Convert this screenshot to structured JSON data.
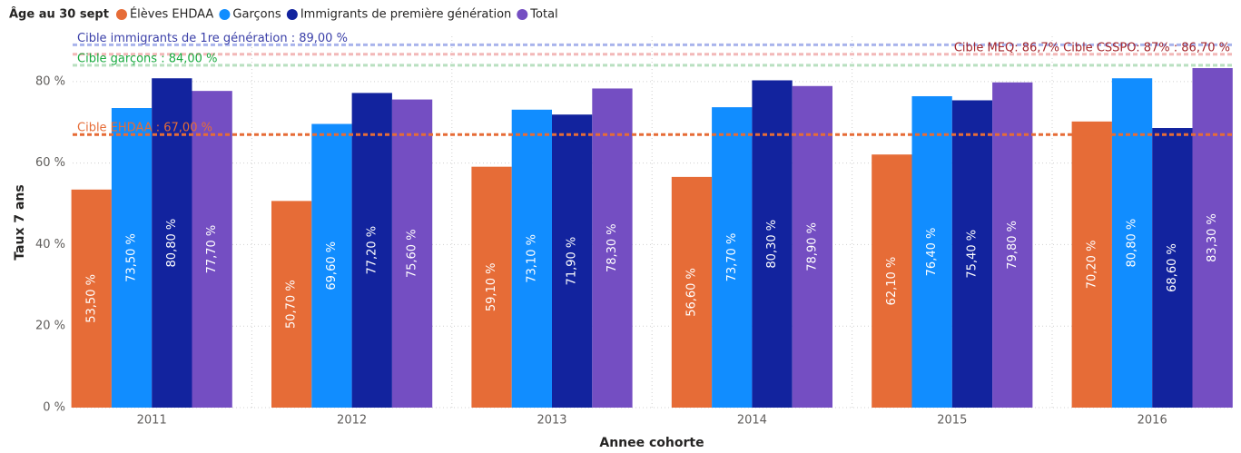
{
  "chart_data": {
    "type": "bar",
    "legend_title": "Âge au 30 sept",
    "x_label": "Annee cohorte",
    "y_label": "Taux 7 ans",
    "categories": [
      "2011",
      "2012",
      "2013",
      "2014",
      "2015",
      "2016"
    ],
    "series": [
      {
        "name": "Élèves EHDAA",
        "color": "#e66c37",
        "values": [
          53.5,
          50.7,
          59.1,
          56.6,
          62.1,
          70.2
        ],
        "value_labels": [
          "53,50 %",
          "50,70 %",
          "59,10 %",
          "56,60 %",
          "62,10 %",
          "70,20 %"
        ]
      },
      {
        "name": "Garçons",
        "color": "#118dff",
        "values": [
          73.5,
          69.6,
          73.1,
          73.7,
          76.4,
          80.8
        ],
        "value_labels": [
          "73,50 %",
          "69,60 %",
          "73,10 %",
          "73,70 %",
          "76,40 %",
          "80,80 %"
        ]
      },
      {
        "name": "Immigrants de première génération",
        "color": "#12239e",
        "values": [
          80.8,
          77.2,
          71.9,
          80.3,
          75.4,
          68.6
        ],
        "value_labels": [
          "80,80 %",
          "77,20 %",
          "71,90 %",
          "80,30 %",
          "75,40 %",
          "68,60 %"
        ]
      },
      {
        "name": "Total",
        "color": "#744ec2",
        "values": [
          77.7,
          75.6,
          78.3,
          78.9,
          79.8,
          83.3
        ],
        "value_labels": [
          "77,70 %",
          "75,60 %",
          "78,30 %",
          "78,90 %",
          "79,80 %",
          "83,30 %"
        ]
      }
    ],
    "reference_lines": [
      {
        "label": "Cible immigrants de 1re génération : 89,00 %",
        "value": 89,
        "color": "#a9b4ec",
        "text_color": "#3a3fa8",
        "side": "left"
      },
      {
        "label": "Cible MEQ: 86,7% Cible CSSPO: 87% : 86,70 %",
        "value": 86.7,
        "color": "#f2b8b8",
        "text_color": "#a4262c",
        "side": "right"
      },
      {
        "label": "Cible garçons : 84,00 %",
        "value": 84,
        "color": "#b9e0c0",
        "text_color": "#1aab40",
        "side": "left"
      },
      {
        "label": "Cible EHDAA : 67,00 %",
        "value": 67,
        "color": "#e66c37",
        "text_color": "#e66c37",
        "side": "left"
      }
    ],
    "ylim": [
      0,
      91.1
    ],
    "yticks": [
      {
        "value": 0,
        "label": "0 %"
      },
      {
        "value": 20,
        "label": "20 %"
      },
      {
        "value": 40,
        "label": "40 %"
      },
      {
        "value": 60,
        "label": "60 %"
      },
      {
        "value": 80,
        "label": "80 %"
      }
    ],
    "grid": true
  }
}
